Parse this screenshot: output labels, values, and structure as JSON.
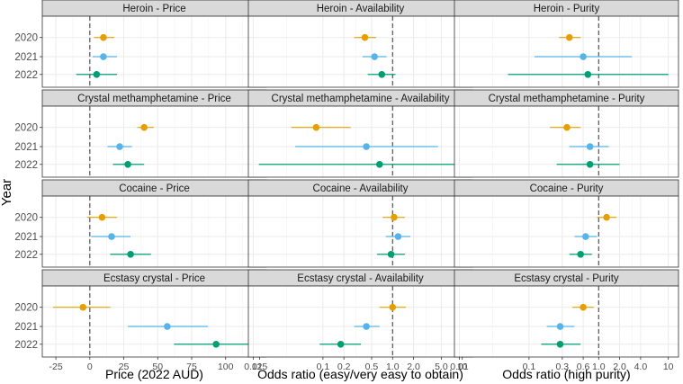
{
  "figure": {
    "y_axis_title": "Year",
    "year_labels": [
      "2020",
      "2021",
      "2022"
    ],
    "x_axis_titles": [
      "Price (2022 AUD)",
      "Odds ratio (easy/very easy to obtain)",
      "Odds ratio (high purity)"
    ],
    "colors": {
      "2020": "#E69F00",
      "2021": "#56B4E9",
      "2022": "#009E73",
      "ref_line": "#444444",
      "strip_bg": "#D9D9D9",
      "grid": "#EBEBEB"
    }
  },
  "chart_data": [
    {
      "type": "scatter",
      "title": "Heroin - Price",
      "xlabel": "Price (2022 AUD)",
      "ylabel": "Year",
      "xscale": "linear",
      "xlim": [
        -35,
        130
      ],
      "ref_x": 0,
      "xticks": [
        -25,
        0,
        25,
        50,
        75,
        100,
        125
      ],
      "points": [
        {
          "year": "2020",
          "estimate": 10,
          "lower": 3,
          "upper": 18
        },
        {
          "year": "2021",
          "estimate": 10,
          "lower": 2,
          "upper": 20
        },
        {
          "year": "2022",
          "estimate": 5,
          "lower": -10,
          "upper": 20
        }
      ]
    },
    {
      "type": "scatter",
      "title": "Heroin - Availability",
      "xlabel": "Odds ratio (easy/very easy to obtain)",
      "ylabel": "Year",
      "xscale": "log",
      "xlim": [
        0.0085,
        14
      ],
      "ref_x": 1,
      "xticks": [
        0.01,
        0.1,
        0.2,
        0.5,
        1.0,
        2.0,
        5.0,
        10
      ],
      "xtick_labels": [
        "0.01",
        "0.1",
        "0.2",
        "0.5",
        "1.0",
        "2.0",
        "5.0",
        "10"
      ],
      "points": [
        {
          "year": "2020",
          "estimate": 0.4,
          "lower": 0.28,
          "upper": 0.58
        },
        {
          "year": "2021",
          "estimate": 0.55,
          "lower": 0.37,
          "upper": 0.82
        },
        {
          "year": "2022",
          "estimate": 0.7,
          "lower": 0.44,
          "upper": 1.1
        }
      ]
    },
    {
      "type": "scatter",
      "title": "Heroin - Purity",
      "xlabel": "Odds ratio (high purity)",
      "ylabel": "Year",
      "xscale": "log",
      "xlim": [
        0.0085,
        14
      ],
      "ref_x": 1,
      "xticks": [
        0.01,
        0.1,
        0.3,
        0.6,
        1.0,
        2.0,
        4.0,
        10
      ],
      "xtick_labels": [
        "0.01",
        "0.1",
        "0.3",
        "0.6",
        "1.0",
        "2.0",
        "4.0",
        "10"
      ],
      "points": [
        {
          "year": "2020",
          "estimate": 0.38,
          "lower": 0.27,
          "upper": 0.55
        },
        {
          "year": "2021",
          "estimate": 0.6,
          "lower": 0.12,
          "upper": 3.0
        },
        {
          "year": "2022",
          "estimate": 0.7,
          "lower": 0.05,
          "upper": 10
        }
      ]
    },
    {
      "type": "scatter",
      "title": "Crystal methamphetamine - Price",
      "xlabel": "Price (2022 AUD)",
      "ylabel": "Year",
      "xscale": "linear",
      "xlim": [
        -35,
        130
      ],
      "ref_x": 0,
      "xticks": [
        -25,
        0,
        25,
        50,
        75,
        100,
        125
      ],
      "points": [
        {
          "year": "2020",
          "estimate": 40,
          "lower": 35,
          "upper": 47
        },
        {
          "year": "2021",
          "estimate": 22,
          "lower": 13,
          "upper": 31
        },
        {
          "year": "2022",
          "estimate": 28,
          "lower": 17,
          "upper": 40
        }
      ]
    },
    {
      "type": "scatter",
      "title": "Crystal methamphetamine - Availability",
      "xlabel": "Odds ratio (easy/very easy to obtain)",
      "ylabel": "Year",
      "xscale": "log",
      "xlim": [
        0.0085,
        14
      ],
      "ref_x": 1,
      "xticks": [
        0.01,
        0.1,
        0.2,
        0.5,
        1.0,
        2.0,
        5.0,
        10
      ],
      "xtick_labels": [
        "0.01",
        "0.1",
        "0.2",
        "0.5",
        "1.0",
        "2.0",
        "5.0",
        "10"
      ],
      "points": [
        {
          "year": "2020",
          "estimate": 0.08,
          "lower": 0.035,
          "upper": 0.25
        },
        {
          "year": "2021",
          "estimate": 0.42,
          "lower": 0.04,
          "upper": 4.5
        },
        {
          "year": "2022",
          "estimate": 0.65,
          "lower": 0.012,
          "upper": 11
        }
      ]
    },
    {
      "type": "scatter",
      "title": "Crystal methamphetamine - Purity",
      "xlabel": "Odds ratio (high purity)",
      "ylabel": "Year",
      "xscale": "log",
      "xlim": [
        0.0085,
        14
      ],
      "ref_x": 1,
      "xticks": [
        0.01,
        0.1,
        0.3,
        0.6,
        1.0,
        2.0,
        4.0,
        10
      ],
      "xtick_labels": [
        "0.01",
        "0.1",
        "0.3",
        "0.6",
        "1.0",
        "2.0",
        "4.0",
        "10"
      ],
      "points": [
        {
          "year": "2020",
          "estimate": 0.35,
          "lower": 0.2,
          "upper": 0.55
        },
        {
          "year": "2021",
          "estimate": 0.75,
          "lower": 0.38,
          "upper": 1.4
        },
        {
          "year": "2022",
          "estimate": 0.75,
          "lower": 0.25,
          "upper": 2.0
        }
      ]
    },
    {
      "type": "scatter",
      "title": "Cocaine - Price",
      "xlabel": "Price (2022 AUD)",
      "ylabel": "Year",
      "xscale": "linear",
      "xlim": [
        -35,
        130
      ],
      "ref_x": 0,
      "xticks": [
        -25,
        0,
        25,
        50,
        75,
        100,
        125
      ],
      "points": [
        {
          "year": "2020",
          "estimate": 9,
          "lower": -2,
          "upper": 20
        },
        {
          "year": "2021",
          "estimate": 16,
          "lower": 1,
          "upper": 30
        },
        {
          "year": "2022",
          "estimate": 30,
          "lower": 15,
          "upper": 45
        }
      ]
    },
    {
      "type": "scatter",
      "title": "Cocaine - Availability",
      "xlabel": "Odds ratio (easy/very easy to obtain)",
      "ylabel": "Year",
      "xscale": "log",
      "xlim": [
        0.0085,
        14
      ],
      "ref_x": 1,
      "xticks": [
        0.01,
        0.1,
        0.2,
        0.5,
        1.0,
        2.0,
        5.0,
        10
      ],
      "xtick_labels": [
        "0.01",
        "0.1",
        "0.2",
        "0.5",
        "1.0",
        "2.0",
        "5.0",
        "10"
      ],
      "points": [
        {
          "year": "2020",
          "estimate": 1.05,
          "lower": 0.72,
          "upper": 1.5
        },
        {
          "year": "2021",
          "estimate": 1.2,
          "lower": 0.8,
          "upper": 1.8
        },
        {
          "year": "2022",
          "estimate": 0.95,
          "lower": 0.6,
          "upper": 1.5
        }
      ]
    },
    {
      "type": "scatter",
      "title": "Cocaine - Purity",
      "xlabel": "Odds ratio (high purity)",
      "ylabel": "Year",
      "xscale": "log",
      "xlim": [
        0.0085,
        14
      ],
      "ref_x": 1,
      "xticks": [
        0.01,
        0.1,
        0.3,
        0.6,
        1.0,
        2.0,
        4.0,
        10
      ],
      "xtick_labels": [
        "0.01",
        "0.1",
        "0.3",
        "0.6",
        "1.0",
        "2.0",
        "4.0",
        "10"
      ],
      "points": [
        {
          "year": "2020",
          "estimate": 1.3,
          "lower": 0.95,
          "upper": 1.8
        },
        {
          "year": "2021",
          "estimate": 0.65,
          "lower": 0.45,
          "upper": 0.95
        },
        {
          "year": "2022",
          "estimate": 0.55,
          "lower": 0.38,
          "upper": 0.8
        }
      ]
    },
    {
      "type": "scatter",
      "title": "Ecstasy crystal - Price",
      "xlabel": "Price (2022 AUD)",
      "ylabel": "Year",
      "xscale": "linear",
      "xlim": [
        -35,
        130
      ],
      "ref_x": 0,
      "xticks": [
        -25,
        0,
        25,
        50,
        75,
        100,
        125
      ],
      "points": [
        {
          "year": "2020",
          "estimate": -5,
          "lower": -27,
          "upper": 15
        },
        {
          "year": "2021",
          "estimate": 57,
          "lower": 28,
          "upper": 87
        },
        {
          "year": "2022",
          "estimate": 93,
          "lower": 62,
          "upper": 123
        }
      ]
    },
    {
      "type": "scatter",
      "title": "Ecstasy crystal - Availability",
      "xlabel": "Odds ratio (easy/very easy to obtain)",
      "ylabel": "Year",
      "xscale": "log",
      "xlim": [
        0.0085,
        14
      ],
      "ref_x": 1,
      "xticks": [
        0.01,
        0.1,
        0.2,
        0.5,
        1.0,
        2.0,
        5.0,
        10
      ],
      "xtick_labels": [
        "0.01",
        "0.1",
        "0.2",
        "0.5",
        "1.0",
        "2.0",
        "5.0",
        "10"
      ],
      "points": [
        {
          "year": "2020",
          "estimate": 1.0,
          "lower": 0.65,
          "upper": 1.55
        },
        {
          "year": "2021",
          "estimate": 0.42,
          "lower": 0.28,
          "upper": 0.65
        },
        {
          "year": "2022",
          "estimate": 0.18,
          "lower": 0.09,
          "upper": 0.35
        }
      ]
    },
    {
      "type": "scatter",
      "title": "Ecstasy crystal - Purity",
      "xlabel": "Odds ratio (high purity)",
      "ylabel": "Year",
      "xscale": "log",
      "xlim": [
        0.0085,
        14
      ],
      "ref_x": 1,
      "xticks": [
        0.01,
        0.1,
        0.3,
        0.6,
        1.0,
        2.0,
        4.0,
        10
      ],
      "xtick_labels": [
        "0.01",
        "0.1",
        "0.3",
        "0.6",
        "1.0",
        "2.0",
        "4.0",
        "10"
      ],
      "points": [
        {
          "year": "2020",
          "estimate": 0.6,
          "lower": 0.42,
          "upper": 0.85
        },
        {
          "year": "2021",
          "estimate": 0.28,
          "lower": 0.18,
          "upper": 0.45
        },
        {
          "year": "2022",
          "estimate": 0.28,
          "lower": 0.15,
          "upper": 0.55
        }
      ]
    }
  ]
}
